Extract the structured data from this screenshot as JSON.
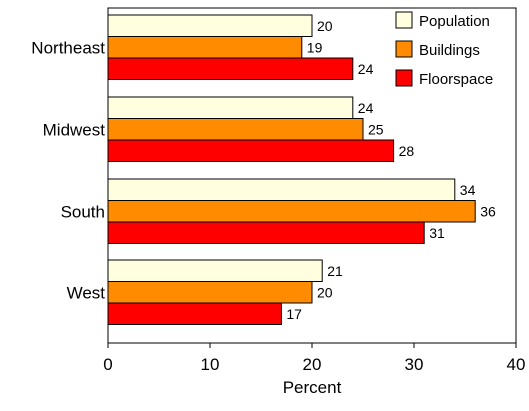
{
  "chart_data": {
    "type": "bar",
    "orientation": "horizontal",
    "categories": [
      "Northeast",
      "Midwest",
      "South",
      "West"
    ],
    "series": [
      {
        "name": "Population",
        "values": [
          20,
          24,
          34,
          21
        ]
      },
      {
        "name": "Buildings",
        "values": [
          19,
          25,
          36,
          20
        ]
      },
      {
        "name": "Floorspace",
        "values": [
          24,
          28,
          31,
          17
        ]
      }
    ],
    "xlabel": "Percent",
    "ylabel": "",
    "xlim": [
      0,
      40
    ],
    "xticks": [
      "0",
      "10",
      "20",
      "30",
      "40"
    ],
    "grid": false,
    "legend_position": "top-right",
    "colors": [
      "#FFFFE0",
      "#FF8C00",
      "#FF0000"
    ]
  }
}
